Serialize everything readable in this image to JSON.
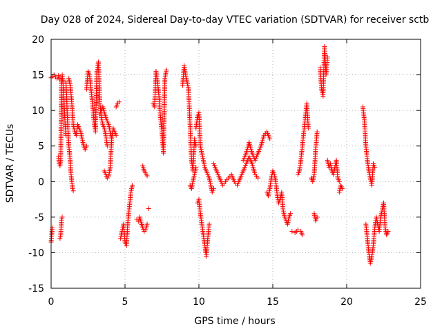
{
  "chart_data": {
    "type": "scatter",
    "title": "Day 028 of 2024, Sidereal Day-to-day VTEC variation (SDTVAR) for receiver sctb",
    "xlabel": "GPS time / hours",
    "ylabel": "SDTVAR / TECUs",
    "xlim": [
      0,
      25
    ],
    "ylim": [
      -15,
      20
    ],
    "xticks": [
      0,
      5,
      10,
      15,
      20,
      25
    ],
    "yticks": [
      -15,
      -10,
      -5,
      0,
      5,
      10,
      15,
      20
    ],
    "grid": true,
    "marker": "+",
    "color": "#ff0000",
    "series": [
      {
        "name": "sctb",
        "segments": [
          {
            "x": [
              0.0,
              0.08
            ],
            "y": [
              -8.5,
              -6.5
            ]
          },
          {
            "x": [
              0.0,
              0.1,
              0.2,
              0.3,
              0.4,
              0.5,
              0.55
            ],
            "y": [
              14.6,
              14.8,
              15.0,
              14.7,
              14.5,
              14.9,
              14.4
            ]
          },
          {
            "x": [
              0.5,
              0.55,
              0.6,
              0.65,
              0.7,
              0.75,
              0.8,
              0.85,
              0.9,
              0.95,
              1.0
            ],
            "y": [
              3.5,
              2.5,
              2.2,
              3.0,
              13.5,
              15.0,
              14.0,
              12.5,
              10.0,
              8.0,
              6.5
            ]
          },
          {
            "x": [
              0.6,
              0.65,
              0.7,
              0.75
            ],
            "y": [
              -8.0,
              -7.5,
              -5.5,
              -5.0
            ]
          },
          {
            "x": [
              1.0,
              1.05,
              1.1,
              1.15,
              1.2,
              1.25,
              1.3,
              1.35,
              1.4,
              1.45,
              1.5
            ],
            "y": [
              14.0,
              12.0,
              9.0,
              7.0,
              5.0,
              4.0,
              2.5,
              1.0,
              0.0,
              -1.0,
              -1.3
            ]
          },
          {
            "x": [
              1.2,
              1.3,
              1.4,
              1.5,
              1.6,
              1.7,
              1.8,
              1.9,
              2.0,
              2.1,
              2.2,
              2.3,
              2.4
            ],
            "y": [
              14.5,
              13.5,
              11.0,
              8.0,
              7.0,
              6.5,
              8.0,
              7.5,
              7.0,
              6.0,
              5.0,
              4.5,
              5.0
            ]
          },
          {
            "x": [
              2.4,
              2.5,
              2.6,
              2.7,
              2.8,
              2.9,
              3.0,
              3.1,
              3.2,
              3.3,
              3.4,
              3.5,
              3.6,
              3.7,
              3.8
            ],
            "y": [
              13.0,
              15.5,
              15.0,
              13.0,
              11.0,
              8.5,
              7.0,
              15.5,
              16.8,
              11.0,
              9.0,
              8.0,
              7.5,
              6.5,
              5.0
            ]
          },
          {
            "x": [
              3.3,
              3.5,
              3.7,
              3.9,
              4.1
            ],
            "y": [
              9.5,
              10.5,
              9.0,
              8.0,
              6.0
            ]
          },
          {
            "x": [
              3.6,
              3.7,
              3.8,
              3.9,
              4.0,
              4.1,
              4.2,
              4.3,
              4.4
            ],
            "y": [
              1.5,
              1.0,
              0.5,
              0.8,
              2.0,
              6.0,
              7.5,
              7.0,
              6.5
            ]
          },
          {
            "x": [
              4.4,
              4.5,
              4.6
            ],
            "y": [
              10.5,
              11.0,
              11.2
            ]
          },
          {
            "x": [
              4.7,
              4.8,
              4.9,
              5.0,
              5.1,
              5.2,
              5.3,
              5.4,
              5.5
            ],
            "y": [
              -8.0,
              -7.0,
              -6.0,
              -8.5,
              -9.0,
              -5.5,
              -3.5,
              -1.5,
              -0.5
            ]
          },
          {
            "x": [
              5.8,
              5.9,
              6.0,
              6.1,
              6.2,
              6.3,
              6.4,
              6.5
            ],
            "y": [
              -5.3,
              -5.6,
              -5.0,
              -5.8,
              -6.5,
              -7.0,
              -6.8,
              -6.0
            ]
          },
          {
            "x": [
              6.6
            ],
            "y": [
              -3.8
            ]
          },
          {
            "x": [
              6.2,
              6.3,
              6.5
            ],
            "y": [
              2.2,
              1.5,
              0.8
            ]
          },
          {
            "x": [
              6.9,
              7.0,
              7.1,
              7.2,
              7.3,
              7.4,
              7.5,
              7.6,
              7.7,
              7.8
            ],
            "y": [
              11.0,
              10.5,
              15.5,
              14.0,
              12.0,
              9.0,
              7.0,
              4.0,
              14.5,
              15.7
            ]
          },
          {
            "x": [
              8.9,
              9.0,
              9.1,
              9.2,
              9.3,
              9.4,
              9.5,
              9.6,
              9.7,
              9.8
            ],
            "y": [
              13.5,
              16.3,
              15.0,
              14.0,
              13.0,
              8.0,
              3.0,
              1.5,
              6.0,
              5.0
            ]
          },
          {
            "x": [
              9.4,
              9.5,
              9.6,
              9.7,
              9.8
            ],
            "y": [
              -0.5,
              -1.0,
              0.0,
              1.0,
              2.0
            ]
          },
          {
            "x": [
              9.8,
              9.9,
              10.0,
              10.1,
              10.2,
              10.3,
              10.4,
              10.5,
              10.6,
              10.7,
              10.8,
              10.9,
              11.0
            ],
            "y": [
              7.5,
              9.0,
              9.7,
              5.0,
              4.0,
              3.0,
              2.0,
              1.5,
              1.0,
              0.5,
              -0.5,
              -1.5,
              -1.0
            ]
          },
          {
            "x": [
              9.9,
              10.0,
              10.1,
              10.2,
              10.3,
              10.4,
              10.5,
              10.6,
              10.7
            ],
            "y": [
              -3.0,
              -2.5,
              -4.5,
              -6.0,
              -7.5,
              -9.0,
              -10.5,
              -8.0,
              -6.0
            ]
          },
          {
            "x": [
              11.0,
              11.2,
              11.4,
              11.6,
              11.8,
              12.0,
              12.2,
              12.4,
              12.6,
              12.8,
              13.0,
              13.2,
              13.4,
              13.6,
              13.8,
              14.0
            ],
            "y": [
              2.5,
              1.5,
              0.5,
              -0.5,
              0.0,
              0.5,
              1.0,
              0.0,
              -0.5,
              0.5,
              1.5,
              2.5,
              3.5,
              2.5,
              1.0,
              0.5
            ]
          },
          {
            "x": [
              13.0,
              13.2,
              13.4,
              13.6,
              13.8,
              14.0,
              14.2,
              14.4,
              14.6,
              14.8
            ],
            "y": [
              3.0,
              4.0,
              5.5,
              4.0,
              3.0,
              4.0,
              5.0,
              6.5,
              7.0,
              6.0
            ]
          },
          {
            "x": [
              14.6,
              14.7,
              14.8,
              14.9,
              15.0,
              15.1,
              15.2,
              15.3,
              15.4,
              15.5,
              15.6,
              15.7,
              15.8,
              15.9,
              16.0,
              16.1,
              16.2
            ],
            "y": [
              -1.5,
              -2.0,
              -1.0,
              0.5,
              1.5,
              1.0,
              0.0,
              -2.0,
              -3.0,
              -2.5,
              -1.5,
              -4.0,
              -5.0,
              -5.5,
              -6.0,
              -5.0,
              -4.5
            ]
          },
          {
            "x": [
              16.3,
              16.5,
              16.7
            ],
            "y": [
              -7.0,
              -7.2,
              -6.8
            ]
          },
          {
            "x": [
              16.7,
              16.8,
              16.9,
              17.0,
              17.1,
              17.2,
              17.3,
              17.4
            ],
            "y": [
              1.0,
              1.5,
              3.0,
              5.0,
              7.0,
              9.0,
              11.0,
              7.5
            ]
          },
          {
            "x": [
              16.9,
              17.0
            ],
            "y": [
              -7.0,
              -7.5
            ]
          },
          {
            "x": [
              17.6,
              17.7,
              17.8,
              17.9,
              18.0
            ],
            "y": [
              0.5,
              0.0,
              1.0,
              4.5,
              7.0
            ]
          },
          {
            "x": [
              17.8,
              17.9,
              18.0
            ],
            "y": [
              -4.5,
              -5.5,
              -5.0
            ]
          },
          {
            "x": [
              18.2,
              18.3,
              18.4,
              18.5,
              18.6,
              18.7
            ],
            "y": [
              16.0,
              13.0,
              12.0,
              19.0,
              15.0,
              17.5
            ]
          },
          {
            "x": [
              18.7,
              18.8,
              18.9,
              19.0,
              19.1,
              19.2,
              19.3,
              19.4,
              19.5
            ],
            "y": [
              3.0,
              2.0,
              2.5,
              1.5,
              1.0,
              2.0,
              3.0,
              0.5,
              0.0
            ]
          },
          {
            "x": [
              19.5,
              19.6,
              19.7
            ],
            "y": [
              -1.5,
              -0.5,
              -1.0
            ]
          },
          {
            "x": [
              21.1,
              21.2,
              21.3,
              21.4,
              21.5,
              21.6,
              21.7,
              21.8,
              21.9
            ],
            "y": [
              10.5,
              8.5,
              5.0,
              3.0,
              1.5,
              0.5,
              -0.5,
              2.5,
              2.0
            ]
          },
          {
            "x": [
              21.3,
              21.4,
              21.5,
              21.6,
              21.7,
              21.8,
              21.9,
              22.0,
              22.1,
              22.2,
              22.3,
              22.4,
              22.5,
              22.6,
              22.7,
              22.8
            ],
            "y": [
              -6.0,
              -8.0,
              -10.0,
              -11.5,
              -10.5,
              -9.0,
              -6.5,
              -5.0,
              -6.0,
              -7.0,
              -5.0,
              -4.0,
              -3.0,
              -6.5,
              -7.5,
              -7.0
            ]
          }
        ]
      }
    ]
  }
}
